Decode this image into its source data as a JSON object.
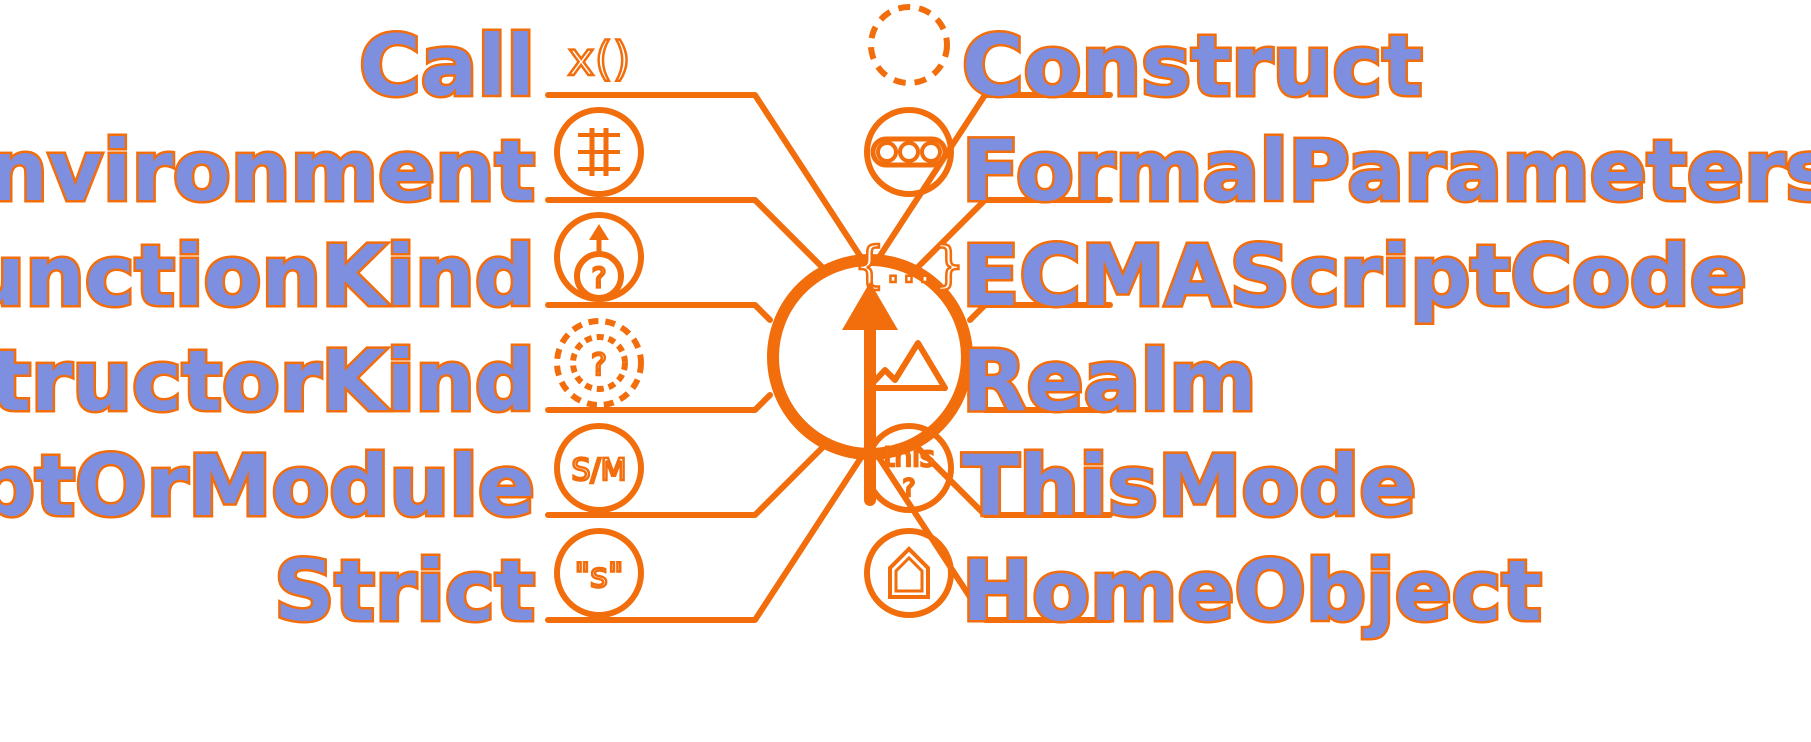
{
  "diagram": {
    "colors": {
      "accent": "#f26d0b",
      "label_fill": "#7f8fe0",
      "background": "#ffffff"
    },
    "left_slots": [
      {
        "label": "Call",
        "icon": "call-parentheses-icon",
        "icon_text": "x()"
      },
      {
        "label": "Environment",
        "icon": "environment-table-icon"
      },
      {
        "label": "FunctionKind",
        "icon": "function-kind-arrow-icon",
        "icon_text": "?"
      },
      {
        "label": "ConstructorKind",
        "icon": "constructor-kind-dashed-icon",
        "icon_text": "?"
      },
      {
        "label": "ScriptOrModule",
        "icon": "script-or-module-icon",
        "icon_text": "S/M"
      },
      {
        "label": "Strict",
        "icon": "strict-quote-icon",
        "icon_text": "\"s\""
      }
    ],
    "right_slots": [
      {
        "label": "Construct",
        "icon": "construct-dashed-circle-icon"
      },
      {
        "label": "FormalParameters",
        "icon": "formal-parameters-icon"
      },
      {
        "label": "ECMAScriptCode",
        "icon": "ecmascript-code-braces-icon",
        "icon_text": "{...}"
      },
      {
        "label": "Realm",
        "icon": "realm-mountains-icon"
      },
      {
        "label": "ThisMode",
        "icon": "this-mode-icon",
        "icon_text": "this",
        "icon_text_2": "?"
      },
      {
        "label": "HomeObject",
        "icon": "home-object-house-icon"
      }
    ],
    "center": {
      "icon": "function-object-up-arrow-icon"
    }
  }
}
